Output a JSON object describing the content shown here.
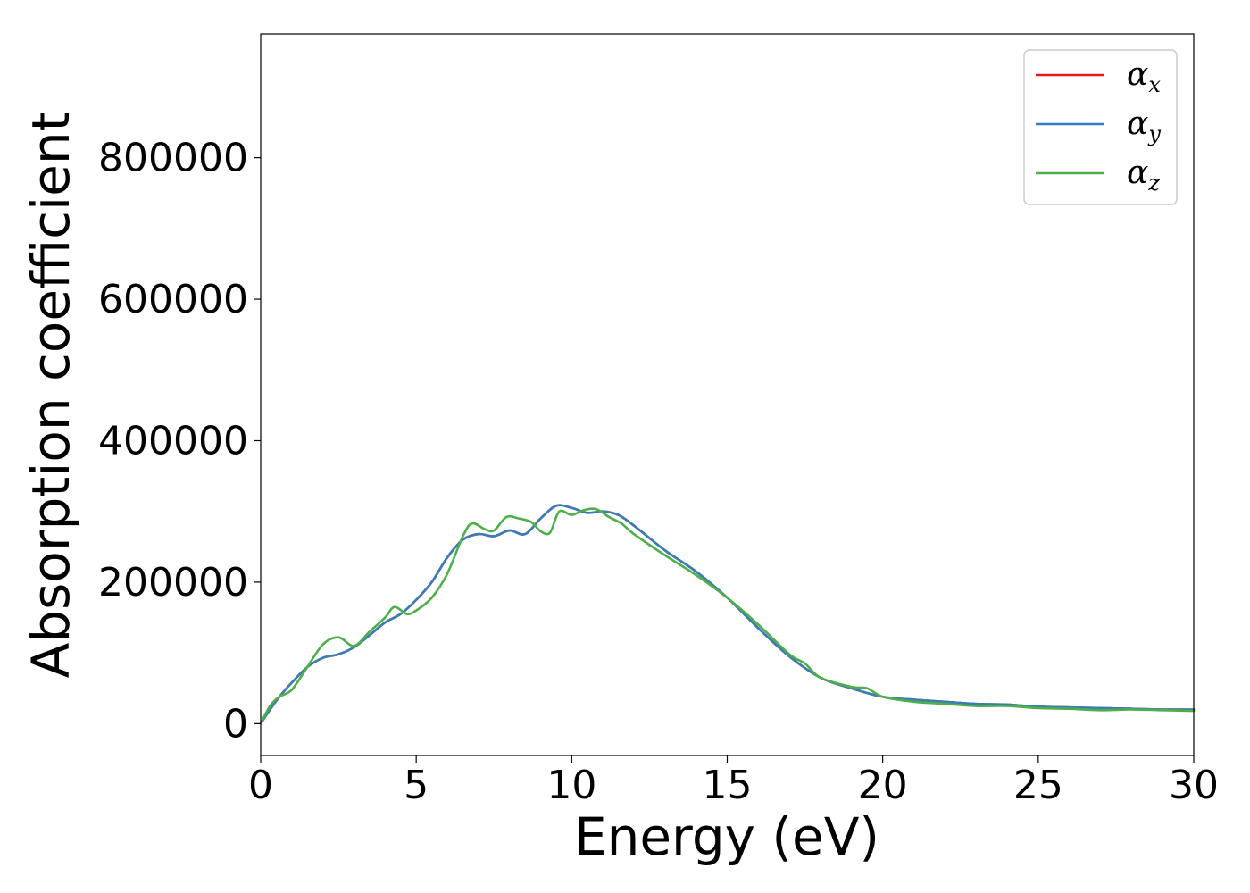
{
  "chart_data": {
    "type": "line",
    "title": "",
    "xlabel": "Energy (eV)",
    "ylabel": "Absorption coefficient",
    "xlim": [
      0,
      30
    ],
    "ylim": [
      -45000,
      975000
    ],
    "xticks": [
      0,
      5,
      10,
      15,
      20,
      25,
      30
    ],
    "yticks": [
      0,
      200000,
      400000,
      600000,
      800000
    ],
    "grid": false,
    "legend_position": "top-right",
    "series": [
      {
        "name": "α",
        "subscript": "x",
        "color": "#e41a1c",
        "x": [
          0,
          0.3,
          0.6,
          1.0,
          1.5,
          2.0,
          2.5,
          3.0,
          3.5,
          4.0,
          4.5,
          5.0,
          5.5,
          6.0,
          6.5,
          7.0,
          7.5,
          8.0,
          8.5,
          9.0,
          9.5,
          10.0,
          10.5,
          11.0,
          11.5,
          12.0,
          13.0,
          14.0,
          15.0,
          16.0,
          17.0,
          18.0,
          19.0,
          20.0,
          21.0,
          22.0,
          23.0,
          24.0,
          25.0,
          26.0,
          27.0,
          28.0,
          29.0,
          30.0
        ],
        "values": [
          0,
          20000,
          38000,
          58000,
          80000,
          93000,
          98000,
          108000,
          125000,
          143000,
          155000,
          175000,
          200000,
          235000,
          260000,
          268000,
          265000,
          273000,
          268000,
          290000,
          308000,
          305000,
          298000,
          300000,
          295000,
          280000,
          245000,
          215000,
          178000,
          135000,
          95000,
          65000,
          50000,
          38000,
          34000,
          31000,
          28000,
          27000,
          24000,
          23000,
          22000,
          21000,
          20000,
          20000
        ]
      },
      {
        "name": "α",
        "subscript": "y",
        "color": "#377eb8",
        "x": [
          0,
          0.3,
          0.6,
          1.0,
          1.5,
          2.0,
          2.5,
          3.0,
          3.5,
          4.0,
          4.5,
          5.0,
          5.5,
          6.0,
          6.5,
          7.0,
          7.5,
          8.0,
          8.5,
          9.0,
          9.5,
          10.0,
          10.5,
          11.0,
          11.5,
          12.0,
          13.0,
          14.0,
          15.0,
          16.0,
          17.0,
          18.0,
          19.0,
          20.0,
          21.0,
          22.0,
          23.0,
          24.0,
          25.0,
          26.0,
          27.0,
          28.0,
          29.0,
          30.0
        ],
        "values": [
          0,
          20000,
          38000,
          58000,
          80000,
          93000,
          98000,
          108000,
          125000,
          143000,
          155000,
          175000,
          200000,
          235000,
          260000,
          268000,
          265000,
          273000,
          268000,
          290000,
          308000,
          305000,
          298000,
          300000,
          295000,
          280000,
          245000,
          215000,
          178000,
          135000,
          95000,
          65000,
          50000,
          38000,
          34000,
          31000,
          28000,
          27000,
          24000,
          23000,
          22000,
          21000,
          20000,
          20000
        ]
      },
      {
        "name": "α",
        "subscript": "z",
        "color": "#4daf4a",
        "x": [
          0,
          0.3,
          0.6,
          1.0,
          1.5,
          2.0,
          2.5,
          3.0,
          3.5,
          4.0,
          4.3,
          4.7,
          5.0,
          5.5,
          6.0,
          6.5,
          6.8,
          7.2,
          7.5,
          7.9,
          8.3,
          8.7,
          9.0,
          9.3,
          9.6,
          10.0,
          10.4,
          10.8,
          11.2,
          11.6,
          12.0,
          13.0,
          14.0,
          15.0,
          16.0,
          17.0,
          17.5,
          18.0,
          19.0,
          19.5,
          20.0,
          21.0,
          22.0,
          23.0,
          24.0,
          25.0,
          26.0,
          27.0,
          28.0,
          29.0,
          30.0
        ],
        "values": [
          0,
          25000,
          38000,
          48000,
          80000,
          112000,
          122000,
          110000,
          130000,
          150000,
          165000,
          155000,
          160000,
          178000,
          212000,
          265000,
          283000,
          275000,
          273000,
          292000,
          290000,
          285000,
          272000,
          270000,
          300000,
          295000,
          302000,
          303000,
          292000,
          283000,
          268000,
          238000,
          210000,
          178000,
          140000,
          98000,
          85000,
          65000,
          52000,
          50000,
          38000,
          31000,
          28000,
          25000,
          25000,
          22000,
          21000,
          19000,
          20000,
          19000,
          18000
        ]
      }
    ]
  }
}
